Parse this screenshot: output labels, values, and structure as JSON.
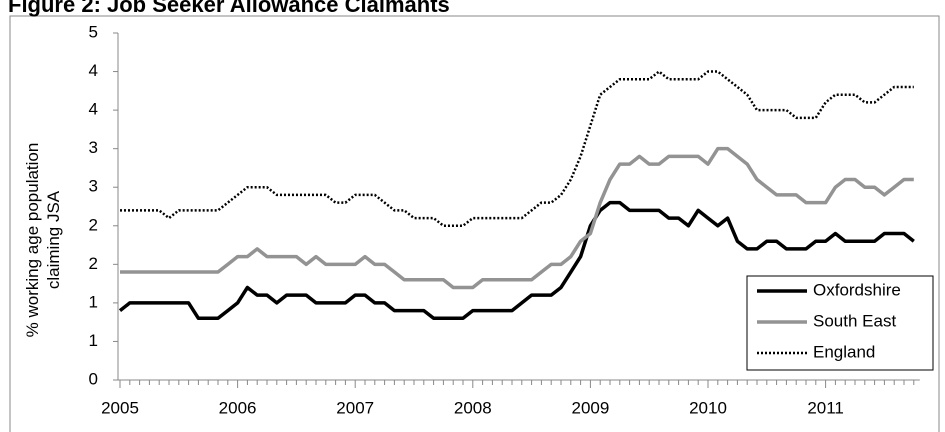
{
  "chart_data": {
    "type": "line",
    "title": "Figure 2: Job Seeker Allowance Claimants",
    "y_label": [
      "% working age population",
      "claiming JSA"
    ],
    "categories": [
      "2005",
      null,
      null,
      null,
      null,
      null,
      null,
      null,
      null,
      null,
      null,
      null,
      "2006",
      null,
      null,
      null,
      null,
      null,
      null,
      null,
      null,
      null,
      null,
      null,
      "2007",
      null,
      null,
      null,
      null,
      null,
      null,
      null,
      null,
      null,
      null,
      null,
      "2008",
      null,
      null,
      null,
      null,
      null,
      null,
      null,
      null,
      null,
      null,
      null,
      "2009",
      null,
      null,
      null,
      null,
      null,
      null,
      null,
      null,
      null,
      null,
      null,
      "2010",
      null,
      null,
      null,
      null,
      null,
      null,
      null,
      null,
      null,
      null,
      null,
      "2011",
      null,
      null,
      null,
      null,
      null,
      null,
      null,
      null,
      null
    ],
    "series": [
      {
        "name": "Oxfordshire",
        "color": "#000000",
        "style": "solid",
        "values": [
          0.9,
          1.0,
          1.0,
          1.0,
          1.0,
          1.0,
          1.0,
          1.0,
          0.8,
          0.8,
          0.8,
          0.9,
          1.0,
          1.2,
          1.1,
          1.1,
          1.0,
          1.1,
          1.1,
          1.1,
          1.0,
          1.0,
          1.0,
          1.0,
          1.1,
          1.1,
          1.0,
          1.0,
          0.9,
          0.9,
          0.9,
          0.9,
          0.8,
          0.8,
          0.8,
          0.8,
          0.9,
          0.9,
          0.9,
          0.9,
          0.9,
          1.0,
          1.1,
          1.1,
          1.1,
          1.2,
          1.4,
          1.6,
          2.0,
          2.2,
          2.3,
          2.3,
          2.2,
          2.2,
          2.2,
          2.2,
          2.1,
          2.1,
          2.0,
          2.2,
          2.1,
          2.0,
          2.1,
          1.8,
          1.7,
          1.7,
          1.8,
          1.8,
          1.7,
          1.7,
          1.7,
          1.8,
          1.8,
          1.9,
          1.8,
          1.8,
          1.8,
          1.8,
          1.9,
          1.9,
          1.9,
          1.8
        ]
      },
      {
        "name": "South East",
        "color": "#939393",
        "style": "solid",
        "values": [
          1.4,
          1.4,
          1.4,
          1.4,
          1.4,
          1.4,
          1.4,
          1.4,
          1.4,
          1.4,
          1.4,
          1.5,
          1.6,
          1.6,
          1.7,
          1.6,
          1.6,
          1.6,
          1.6,
          1.5,
          1.6,
          1.5,
          1.5,
          1.5,
          1.5,
          1.6,
          1.5,
          1.5,
          1.4,
          1.3,
          1.3,
          1.3,
          1.3,
          1.3,
          1.2,
          1.2,
          1.2,
          1.3,
          1.3,
          1.3,
          1.3,
          1.3,
          1.3,
          1.4,
          1.5,
          1.5,
          1.6,
          1.8,
          1.9,
          2.3,
          2.6,
          2.8,
          2.8,
          2.9,
          2.8,
          2.8,
          2.9,
          2.9,
          2.9,
          2.9,
          2.8,
          3.0,
          3.0,
          2.9,
          2.8,
          2.6,
          2.5,
          2.4,
          2.4,
          2.4,
          2.3,
          2.3,
          2.3,
          2.5,
          2.6,
          2.6,
          2.5,
          2.5,
          2.4,
          2.5,
          2.6,
          2.6
        ]
      },
      {
        "name": "England",
        "color": "#000000",
        "style": "dotted",
        "values": [
          2.2,
          2.2,
          2.2,
          2.2,
          2.2,
          2.1,
          2.2,
          2.2,
          2.2,
          2.2,
          2.2,
          2.3,
          2.4,
          2.5,
          2.5,
          2.5,
          2.4,
          2.4,
          2.4,
          2.4,
          2.4,
          2.4,
          2.3,
          2.3,
          2.4,
          2.4,
          2.4,
          2.3,
          2.2,
          2.2,
          2.1,
          2.1,
          2.1,
          2.0,
          2.0,
          2.0,
          2.1,
          2.1,
          2.1,
          2.1,
          2.1,
          2.1,
          2.2,
          2.3,
          2.3,
          2.4,
          2.6,
          2.9,
          3.3,
          3.7,
          3.8,
          3.9,
          3.9,
          3.9,
          3.9,
          4.0,
          3.9,
          3.9,
          3.9,
          3.9,
          4.0,
          4.0,
          3.9,
          3.8,
          3.7,
          3.5,
          3.5,
          3.5,
          3.5,
          3.4,
          3.4,
          3.4,
          3.6,
          3.7,
          3.7,
          3.7,
          3.6,
          3.6,
          3.7,
          3.8,
          3.8,
          3.8
        ]
      }
    ],
    "ylim": [
      0,
      4.5
    ],
    "yticks": [
      0,
      {
        "value": 0.5,
        "label": "1"
      },
      1,
      {
        "value": 1.5,
        "label": "2"
      },
      2,
      {
        "value": 2.5,
        "label": "3"
      },
      3,
      {
        "value": 3.5,
        "label": "4"
      },
      4,
      {
        "value": 4.5,
        "label": "5"
      }
    ],
    "grid": false,
    "legend": "lower right"
  }
}
